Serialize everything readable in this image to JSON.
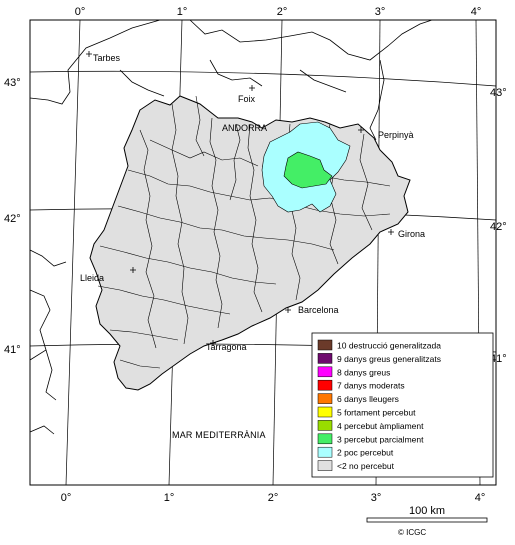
{
  "map": {
    "lon_labels": [
      "0°",
      "1°",
      "2°",
      "3°",
      "4°"
    ],
    "lat_labels": [
      "43°",
      "42°",
      "41°"
    ],
    "places": {
      "tarbes": "Tarbes",
      "foix": "Foix",
      "andorra": "ANDORRA",
      "perpinya": "Perpinyà",
      "girona": "Girona",
      "lleida": "Lleida",
      "barcelona": "Barcelona",
      "tarragona": "Tarragona",
      "sea": "MAR MEDITERRÀNIA"
    },
    "scale_label": "100 km",
    "copyright": "© ICGC",
    "colors": {
      "land": "#e0e0e0",
      "border": "#000000",
      "intensity_2": "#aaffff",
      "intensity_3": "#44ee66"
    }
  },
  "legend": {
    "items": [
      {
        "label": "10 destrucció generalitzada",
        "color": "#6b3a2a"
      },
      {
        "label": "9 danys greus generalitzats",
        "color": "#6e0a6e"
      },
      {
        "label": "8 danys greus",
        "color": "#ff00ff"
      },
      {
        "label": "7 danys moderats",
        "color": "#ff0000"
      },
      {
        "label": "6 danys lleugers",
        "color": "#ff7700"
      },
      {
        "label": "5 fortament percebut",
        "color": "#ffff00"
      },
      {
        "label": "4 percebut àmpliament",
        "color": "#99dd00"
      },
      {
        "label": "3 percebut parcialment",
        "color": "#44ee66"
      },
      {
        "label": "2 poc percebut",
        "color": "#aaffff"
      },
      {
        "label": "<2 no percebut",
        "color": "#e0e0e0"
      }
    ]
  }
}
